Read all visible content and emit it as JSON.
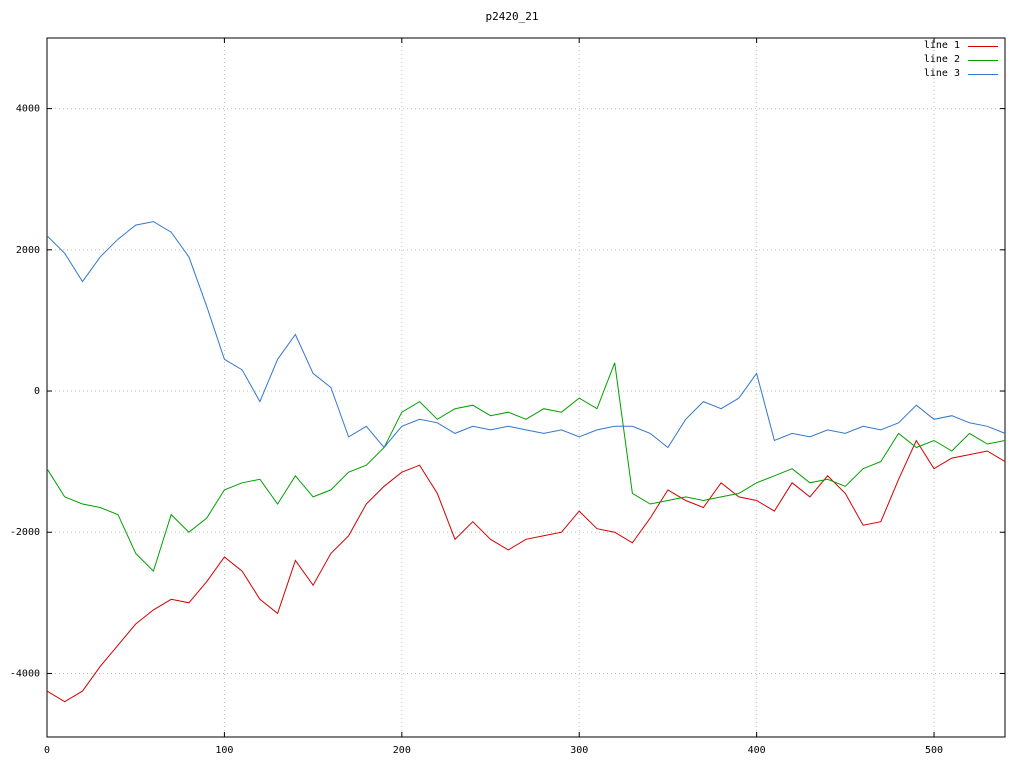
{
  "title": "p2420_21",
  "chart_data": {
    "type": "line",
    "title": "p2420_21",
    "xlabel": "",
    "ylabel": "",
    "xlim": [
      0,
      540
    ],
    "ylim": [
      -4900,
      5000
    ],
    "x_ticks": [
      0,
      100,
      200,
      300,
      400,
      500
    ],
    "y_ticks": [
      -4000,
      -2000,
      0,
      2000,
      4000
    ],
    "grid": true,
    "grid_style": "dotted",
    "legend_position": "top-right",
    "background": "#ffffff",
    "border_color": "#000000",
    "grid_color": "#bdbdbd",
    "x": [
      0,
      10,
      20,
      30,
      40,
      50,
      60,
      70,
      80,
      90,
      100,
      110,
      120,
      130,
      140,
      150,
      160,
      170,
      180,
      190,
      200,
      210,
      220,
      230,
      240,
      250,
      260,
      270,
      280,
      290,
      300,
      310,
      320,
      330,
      340,
      350,
      360,
      370,
      380,
      390,
      400,
      410,
      420,
      430,
      440,
      450,
      460,
      470,
      480,
      490,
      500,
      510,
      520,
      530,
      540
    ],
    "series": [
      {
        "name": "line 1",
        "color": "#d40000",
        "values": [
          -4250,
          -4400,
          -4250,
          -3900,
          -3600,
          -3300,
          -3100,
          -2950,
          -3000,
          -2700,
          -2350,
          -2550,
          -2950,
          -3150,
          -2400,
          -2750,
          -2300,
          -2050,
          -1600,
          -1350,
          -1150,
          -1050,
          -1450,
          -2100,
          -1850,
          -2100,
          -2250,
          -2100,
          -2050,
          -2000,
          -1700,
          -1950,
          -2000,
          -2150,
          -1800,
          -1400,
          -1550,
          -1650,
          -1300,
          -1500,
          -1550,
          -1700,
          -1300,
          -1500,
          -1200,
          -1450,
          -1900,
          -1850,
          -1250,
          -700,
          -1100,
          -950,
          -900,
          -850,
          -1000
        ]
      },
      {
        "name": "line 2",
        "color": "#00a000",
        "values": [
          -1100,
          -1500,
          -1600,
          -1650,
          -1750,
          -2300,
          -2550,
          -1750,
          -2000,
          -1800,
          -1400,
          -1300,
          -1250,
          -1600,
          -1200,
          -1500,
          -1400,
          -1150,
          -1050,
          -800,
          -300,
          -150,
          -400,
          -250,
          -200,
          -350,
          -300,
          -400,
          -250,
          -300,
          -100,
          -250,
          400,
          -1450,
          -1600,
          -1550,
          -1500,
          -1550,
          -1500,
          -1450,
          -1300,
          -1200,
          -1100,
          -1300,
          -1250,
          -1350,
          -1100,
          -1000,
          -600,
          -800,
          -700,
          -850,
          -600,
          -750,
          -700
        ]
      },
      {
        "name": "line 3",
        "color": "#3377cc",
        "values": [
          2200,
          1950,
          1550,
          1900,
          2150,
          2350,
          2400,
          2250,
          1900,
          1200,
          450,
          300,
          -150,
          450,
          800,
          250,
          50,
          -650,
          -500,
          -800,
          -500,
          -400,
          -450,
          -600,
          -500,
          -550,
          -500,
          -550,
          -600,
          -550,
          -650,
          -550,
          -500,
          -500,
          -600,
          -800,
          -400,
          -150,
          -250,
          -100,
          250,
          -700,
          -600,
          -650,
          -550,
          -600,
          -500,
          -550,
          -450,
          -200,
          -400,
          -350,
          -450,
          -500,
          -600
        ]
      }
    ]
  }
}
